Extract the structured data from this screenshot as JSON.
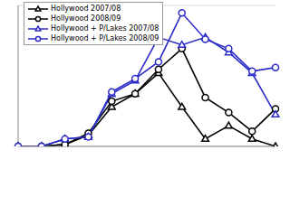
{
  "chart_data": {
    "type": "line",
    "categories": [
      null,
      null,
      null,
      null,
      null,
      null,
      null,
      null,
      null,
      null,
      null,
      null
    ],
    "series": [
      {
        "name": "Hollywood 2007/08",
        "color": "#000000",
        "marker": "triangle",
        "values": [
          0,
          0,
          0.1,
          0.6,
          2.1,
          2.8,
          3.9,
          2.1,
          0.4,
          1.1,
          0.4,
          0
        ]
      },
      {
        "name": "Hollywood 2008/09",
        "color": "#000000",
        "marker": "circle",
        "values": [
          0,
          0,
          0.1,
          0.7,
          2.4,
          2.8,
          4.1,
          5.2,
          2.6,
          1.8,
          0.8,
          2.0
        ]
      },
      {
        "name": "Hollywood + P/Lakes 2007/08",
        "color": "#2b2bc8",
        "marker": "triangle",
        "values": [
          0,
          0,
          0.4,
          0.5,
          2.8,
          3.5,
          5.8,
          5.4,
          5.8,
          5.0,
          3.9,
          1.7
        ]
      },
      {
        "name": "Hollywood + P/Lakes 2008/09",
        "color": "#2b2bc8",
        "marker": "circle",
        "values": [
          0,
          0,
          0.4,
          0.5,
          2.9,
          3.6,
          4.5,
          7.1,
          5.7,
          5.2,
          4.0,
          4.2
        ]
      }
    ],
    "ylim": [
      0,
      7.5
    ],
    "yticks": [
      0,
      1,
      2,
      3,
      4,
      5,
      6,
      7
    ],
    "grid": true,
    "legend": "upper left",
    "tick_labels": false
  }
}
